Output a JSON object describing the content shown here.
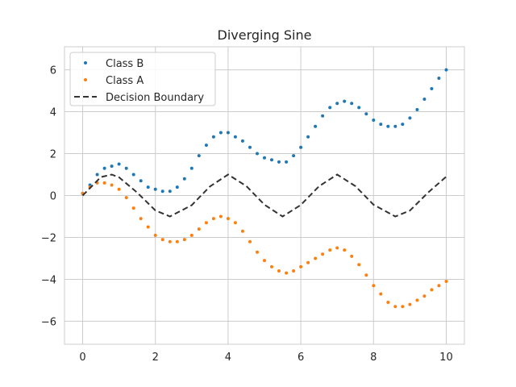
{
  "chart_data": {
    "type": "scatter",
    "title": "Diverging Sine",
    "xlabel": "",
    "ylabel": "",
    "xlim": [
      -0.5,
      10.5
    ],
    "ylim": [
      -7.1,
      7.1
    ],
    "xticks": [
      0,
      2,
      4,
      6,
      8,
      10
    ],
    "yticks": [
      -6,
      -4,
      -2,
      0,
      2,
      4,
      6
    ],
    "grid": true,
    "legend_position": "top-left",
    "series": [
      {
        "name": "Class B",
        "kind": "scatter",
        "color": "#1f77b4",
        "points": [
          [
            0.0,
            0.1
          ],
          [
            0.2,
            0.5
          ],
          [
            0.4,
            1.0
          ],
          [
            0.6,
            1.3
          ],
          [
            0.8,
            1.4
          ],
          [
            1.0,
            1.5
          ],
          [
            1.2,
            1.3
          ],
          [
            1.4,
            1.0
          ],
          [
            1.6,
            0.7
          ],
          [
            1.8,
            0.4
          ],
          [
            2.0,
            0.3
          ],
          [
            2.2,
            0.2
          ],
          [
            2.4,
            0.2
          ],
          [
            2.6,
            0.4
          ],
          [
            2.8,
            0.8
          ],
          [
            3.0,
            1.3
          ],
          [
            3.2,
            1.9
          ],
          [
            3.4,
            2.4
          ],
          [
            3.6,
            2.8
          ],
          [
            3.8,
            3.0
          ],
          [
            4.0,
            3.0
          ],
          [
            4.2,
            2.8
          ],
          [
            4.4,
            2.6
          ],
          [
            4.6,
            2.3
          ],
          [
            4.8,
            2.0
          ],
          [
            5.0,
            1.8
          ],
          [
            5.2,
            1.7
          ],
          [
            5.4,
            1.6
          ],
          [
            5.6,
            1.6
          ],
          [
            5.8,
            1.9
          ],
          [
            6.0,
            2.3
          ],
          [
            6.2,
            2.8
          ],
          [
            6.4,
            3.3
          ],
          [
            6.6,
            3.8
          ],
          [
            6.8,
            4.2
          ],
          [
            7.0,
            4.4
          ],
          [
            7.2,
            4.5
          ],
          [
            7.4,
            4.4
          ],
          [
            7.6,
            4.2
          ],
          [
            7.8,
            3.9
          ],
          [
            8.0,
            3.6
          ],
          [
            8.2,
            3.4
          ],
          [
            8.4,
            3.3
          ],
          [
            8.6,
            3.3
          ],
          [
            8.8,
            3.4
          ],
          [
            9.0,
            3.7
          ],
          [
            9.2,
            4.1
          ],
          [
            9.4,
            4.6
          ],
          [
            9.6,
            5.1
          ],
          [
            9.8,
            5.6
          ],
          [
            10.0,
            6.0
          ]
        ]
      },
      {
        "name": "Class A",
        "kind": "scatter",
        "color": "#ff7f0e",
        "points": [
          [
            0.0,
            0.1
          ],
          [
            0.2,
            0.4
          ],
          [
            0.4,
            0.6
          ],
          [
            0.6,
            0.6
          ],
          [
            0.8,
            0.5
          ],
          [
            1.0,
            0.3
          ],
          [
            1.2,
            -0.1
          ],
          [
            1.4,
            -0.6
          ],
          [
            1.6,
            -1.1
          ],
          [
            1.8,
            -1.5
          ],
          [
            2.0,
            -1.9
          ],
          [
            2.2,
            -2.1
          ],
          [
            2.4,
            -2.2
          ],
          [
            2.6,
            -2.2
          ],
          [
            2.8,
            -2.1
          ],
          [
            3.0,
            -1.9
          ],
          [
            3.2,
            -1.6
          ],
          [
            3.4,
            -1.3
          ],
          [
            3.6,
            -1.1
          ],
          [
            3.8,
            -1.0
          ],
          [
            4.0,
            -1.1
          ],
          [
            4.2,
            -1.3
          ],
          [
            4.4,
            -1.7
          ],
          [
            4.6,
            -2.2
          ],
          [
            4.8,
            -2.7
          ],
          [
            5.0,
            -3.1
          ],
          [
            5.2,
            -3.4
          ],
          [
            5.4,
            -3.6
          ],
          [
            5.6,
            -3.7
          ],
          [
            5.8,
            -3.6
          ],
          [
            6.0,
            -3.4
          ],
          [
            6.2,
            -3.2
          ],
          [
            6.4,
            -3.0
          ],
          [
            6.6,
            -2.8
          ],
          [
            6.8,
            -2.6
          ],
          [
            7.0,
            -2.5
          ],
          [
            7.2,
            -2.6
          ],
          [
            7.4,
            -2.9
          ],
          [
            7.6,
            -3.3
          ],
          [
            7.8,
            -3.8
          ],
          [
            8.0,
            -4.3
          ],
          [
            8.2,
            -4.7
          ],
          [
            8.4,
            -5.1
          ],
          [
            8.6,
            -5.3
          ],
          [
            8.8,
            -5.3
          ],
          [
            9.0,
            -5.2
          ],
          [
            9.2,
            -5.0
          ],
          [
            9.4,
            -4.8
          ],
          [
            9.6,
            -4.5
          ],
          [
            9.8,
            -4.3
          ],
          [
            10.0,
            -4.1
          ]
        ]
      },
      {
        "name": "Decision Boundary",
        "kind": "line",
        "style": "dashed",
        "color": "#333333",
        "points": [
          [
            0.0,
            0.0
          ],
          [
            0.5,
            0.88
          ],
          [
            0.8,
            1.0
          ],
          [
            1.0,
            0.87
          ],
          [
            1.5,
            0.14
          ],
          [
            2.0,
            -0.71
          ],
          [
            2.4,
            -1.0
          ],
          [
            3.0,
            -0.46
          ],
          [
            3.5,
            0.43
          ],
          [
            4.0,
            1.0
          ],
          [
            4.5,
            0.45
          ],
          [
            5.0,
            -0.44
          ],
          [
            5.5,
            -1.0
          ],
          [
            6.0,
            -0.45
          ],
          [
            6.5,
            0.44
          ],
          [
            7.0,
            1.0
          ],
          [
            7.5,
            0.45
          ],
          [
            8.0,
            -0.44
          ],
          [
            8.6,
            -1.0
          ],
          [
            9.0,
            -0.72
          ],
          [
            9.5,
            0.14
          ],
          [
            10.0,
            0.9
          ]
        ]
      }
    ]
  }
}
